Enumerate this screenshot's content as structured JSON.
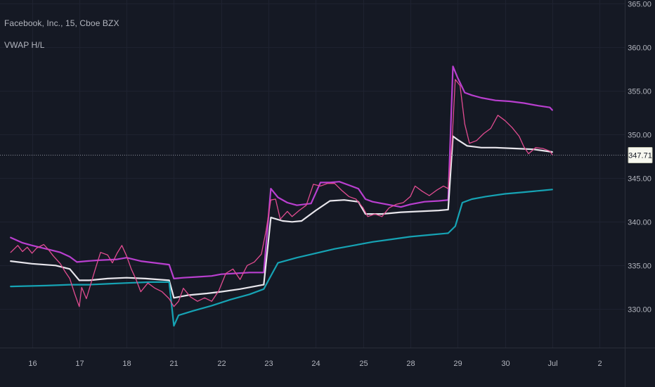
{
  "header": {
    "symbol_title": "Facebook, Inc., 15, Cboe BZX",
    "indicator_title": "VWAP H/L"
  },
  "chart_data": {
    "type": "candlestick",
    "y_ticks": [
      "365.00",
      "360.00",
      "355.00",
      "350.00",
      "345.00",
      "340.00",
      "335.00",
      "330.00"
    ],
    "y_tick_values": [
      365,
      360,
      355,
      350,
      345,
      340,
      335,
      330
    ],
    "ylim": [
      325.6,
      365.4
    ],
    "x_ticks": [
      "16",
      "17",
      "18",
      "21",
      "22",
      "23",
      "24",
      "25",
      "28",
      "29",
      "30",
      "Jul",
      "2"
    ],
    "x_tick_index": [
      0,
      1,
      2,
      3,
      4,
      5,
      6,
      7,
      8,
      9,
      10,
      11,
      12
    ],
    "last_price": "347.71",
    "last_price_value": 347.71,
    "grid": true,
    "series": [
      {
        "name": "",
        "color": "#b93fcf",
        "points": [
          [
            -0.45,
            338.2
          ],
          [
            -0.2,
            337.6
          ],
          [
            0.0,
            337.3
          ],
          [
            0.3,
            336.9
          ],
          [
            0.6,
            336.5
          ],
          [
            0.8,
            336.0
          ],
          [
            0.95,
            335.4
          ],
          [
            1.15,
            335.5
          ],
          [
            1.4,
            335.6
          ],
          [
            1.8,
            335.7
          ],
          [
            2.0,
            335.9
          ],
          [
            2.3,
            335.5
          ],
          [
            2.6,
            335.3
          ],
          [
            2.9,
            335.1
          ],
          [
            3.0,
            333.5
          ],
          [
            3.2,
            333.6
          ],
          [
            3.5,
            333.7
          ],
          [
            3.8,
            333.8
          ],
          [
            4.0,
            334.0
          ],
          [
            4.3,
            334.1
          ],
          [
            4.6,
            334.2
          ],
          [
            4.9,
            334.2
          ],
          [
            5.05,
            343.8
          ],
          [
            5.2,
            342.8
          ],
          [
            5.4,
            342.2
          ],
          [
            5.6,
            341.9
          ],
          [
            5.9,
            342.1
          ],
          [
            6.1,
            344.5
          ],
          [
            6.3,
            344.5
          ],
          [
            6.5,
            344.6
          ],
          [
            6.7,
            344.2
          ],
          [
            6.9,
            343.8
          ],
          [
            7.05,
            342.6
          ],
          [
            7.2,
            342.3
          ],
          [
            7.5,
            342.0
          ],
          [
            7.8,
            341.7
          ],
          [
            8.0,
            342.0
          ],
          [
            8.3,
            342.3
          ],
          [
            8.6,
            342.4
          ],
          [
            8.8,
            342.5
          ],
          [
            8.9,
            357.8
          ],
          [
            9.0,
            356.5
          ],
          [
            9.15,
            354.8
          ],
          [
            9.3,
            354.5
          ],
          [
            9.5,
            354.2
          ],
          [
            9.8,
            353.9
          ],
          [
            10.1,
            353.8
          ],
          [
            10.4,
            353.6
          ],
          [
            10.7,
            353.3
          ],
          [
            10.95,
            353.1
          ],
          [
            11.0,
            352.8
          ]
        ]
      },
      {
        "name": "",
        "color": "#e8e6ec",
        "points": [
          [
            -0.45,
            335.5
          ],
          [
            0.0,
            335.2
          ],
          [
            0.5,
            335.0
          ],
          [
            0.8,
            334.6
          ],
          [
            1.0,
            333.3
          ],
          [
            1.2,
            333.3
          ],
          [
            1.6,
            333.5
          ],
          [
            2.0,
            333.6
          ],
          [
            2.4,
            333.5
          ],
          [
            2.9,
            333.3
          ],
          [
            3.0,
            331.3
          ],
          [
            3.3,
            331.6
          ],
          [
            3.7,
            331.8
          ],
          [
            4.0,
            332.0
          ],
          [
            4.4,
            332.3
          ],
          [
            4.9,
            332.8
          ],
          [
            5.05,
            340.5
          ],
          [
            5.3,
            340.1
          ],
          [
            5.5,
            340.0
          ],
          [
            5.7,
            340.1
          ],
          [
            6.0,
            341.3
          ],
          [
            6.3,
            342.4
          ],
          [
            6.6,
            342.5
          ],
          [
            6.9,
            342.3
          ],
          [
            7.05,
            340.9
          ],
          [
            7.4,
            340.9
          ],
          [
            7.8,
            341.1
          ],
          [
            8.2,
            341.2
          ],
          [
            8.6,
            341.3
          ],
          [
            8.8,
            341.4
          ],
          [
            8.9,
            349.8
          ],
          [
            9.0,
            349.4
          ],
          [
            9.2,
            348.7
          ],
          [
            9.5,
            348.5
          ],
          [
            9.8,
            348.5
          ],
          [
            10.2,
            348.4
          ],
          [
            10.6,
            348.3
          ],
          [
            11.0,
            348.0
          ]
        ]
      },
      {
        "name": "",
        "color": "#16a3b4",
        "points": [
          [
            -0.45,
            332.6
          ],
          [
            0.3,
            332.7
          ],
          [
            0.8,
            332.8
          ],
          [
            1.2,
            332.8
          ],
          [
            1.6,
            332.9
          ],
          [
            2.0,
            333.0
          ],
          [
            2.5,
            333.1
          ],
          [
            2.9,
            333.1
          ],
          [
            3.0,
            328.1
          ],
          [
            3.1,
            329.3
          ],
          [
            3.4,
            329.8
          ],
          [
            3.8,
            330.4
          ],
          [
            4.2,
            331.1
          ],
          [
            4.6,
            331.7
          ],
          [
            4.9,
            332.3
          ],
          [
            5.0,
            333.3
          ],
          [
            5.2,
            335.3
          ],
          [
            5.6,
            335.9
          ],
          [
            6.0,
            336.4
          ],
          [
            6.4,
            336.9
          ],
          [
            6.8,
            337.3
          ],
          [
            7.2,
            337.7
          ],
          [
            7.6,
            338.0
          ],
          [
            8.0,
            338.3
          ],
          [
            8.4,
            338.5
          ],
          [
            8.8,
            338.7
          ],
          [
            8.95,
            339.5
          ],
          [
            9.1,
            342.2
          ],
          [
            9.3,
            342.6
          ],
          [
            9.6,
            342.9
          ],
          [
            10.0,
            343.2
          ],
          [
            10.4,
            343.4
          ],
          [
            10.8,
            343.6
          ],
          [
            11.0,
            343.7
          ]
        ]
      },
      {
        "name": "",
        "color": "#e24c91",
        "points": [
          [
            -0.45,
            336.5
          ],
          [
            -0.3,
            337.3
          ],
          [
            -0.2,
            336.6
          ],
          [
            -0.1,
            337.1
          ],
          [
            0.0,
            336.4
          ],
          [
            0.1,
            337.0
          ],
          [
            0.25,
            337.4
          ],
          [
            0.35,
            336.8
          ],
          [
            0.45,
            336.1
          ],
          [
            0.6,
            335.2
          ],
          [
            0.7,
            334.3
          ],
          [
            0.8,
            333.5
          ],
          [
            0.9,
            331.8
          ],
          [
            1.0,
            330.3
          ],
          [
            1.05,
            332.5
          ],
          [
            1.15,
            331.2
          ],
          [
            1.25,
            333.0
          ],
          [
            1.35,
            334.8
          ],
          [
            1.45,
            336.5
          ],
          [
            1.6,
            336.2
          ],
          [
            1.7,
            335.3
          ],
          [
            1.8,
            336.4
          ],
          [
            1.9,
            337.3
          ],
          [
            2.0,
            336.1
          ],
          [
            2.1,
            334.6
          ],
          [
            2.2,
            333.4
          ],
          [
            2.3,
            332.0
          ],
          [
            2.45,
            333.0
          ],
          [
            2.6,
            332.4
          ],
          [
            2.75,
            332.0
          ],
          [
            2.9,
            331.2
          ],
          [
            3.0,
            330.3
          ],
          [
            3.1,
            330.9
          ],
          [
            3.2,
            332.4
          ],
          [
            3.35,
            331.4
          ],
          [
            3.5,
            330.9
          ],
          [
            3.65,
            331.3
          ],
          [
            3.8,
            330.9
          ],
          [
            3.95,
            332.1
          ],
          [
            4.1,
            334.1
          ],
          [
            4.25,
            334.6
          ],
          [
            4.4,
            333.4
          ],
          [
            4.55,
            335.0
          ],
          [
            4.7,
            335.4
          ],
          [
            4.85,
            336.3
          ],
          [
            4.95,
            339.0
          ],
          [
            5.05,
            342.5
          ],
          [
            5.15,
            342.6
          ],
          [
            5.25,
            340.3
          ],
          [
            5.4,
            341.2
          ],
          [
            5.5,
            340.6
          ],
          [
            5.65,
            341.3
          ],
          [
            5.8,
            341.9
          ],
          [
            5.95,
            344.3
          ],
          [
            6.1,
            344.1
          ],
          [
            6.25,
            344.4
          ],
          [
            6.4,
            344.4
          ],
          [
            6.55,
            343.6
          ],
          [
            6.7,
            342.9
          ],
          [
            6.85,
            342.6
          ],
          [
            7.0,
            341.6
          ],
          [
            7.1,
            340.6
          ],
          [
            7.25,
            340.9
          ],
          [
            7.4,
            340.6
          ],
          [
            7.55,
            341.6
          ],
          [
            7.7,
            342.0
          ],
          [
            7.85,
            342.2
          ],
          [
            8.0,
            342.9
          ],
          [
            8.1,
            344.1
          ],
          [
            8.25,
            343.5
          ],
          [
            8.4,
            343.0
          ],
          [
            8.55,
            343.6
          ],
          [
            8.7,
            344.1
          ],
          [
            8.8,
            343.8
          ],
          [
            8.88,
            349.0
          ],
          [
            8.95,
            356.3
          ],
          [
            9.05,
            355.6
          ],
          [
            9.15,
            351.2
          ],
          [
            9.25,
            349.0
          ],
          [
            9.4,
            349.3
          ],
          [
            9.55,
            350.1
          ],
          [
            9.7,
            350.7
          ],
          [
            9.85,
            352.2
          ],
          [
            10.0,
            351.6
          ],
          [
            10.15,
            350.8
          ],
          [
            10.3,
            349.8
          ],
          [
            10.4,
            348.6
          ],
          [
            10.5,
            347.8
          ],
          [
            10.65,
            348.5
          ],
          [
            10.8,
            348.4
          ],
          [
            10.95,
            348.1
          ],
          [
            11.0,
            347.7
          ]
        ]
      }
    ]
  }
}
